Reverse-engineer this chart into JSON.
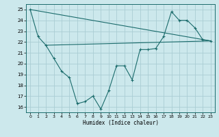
{
  "xlabel": "Humidex (Indice chaleur)",
  "xlim": [
    -0.5,
    23.5
  ],
  "ylim": [
    15.5,
    25.5
  ],
  "xticks": [
    0,
    1,
    2,
    3,
    4,
    5,
    6,
    7,
    8,
    9,
    10,
    11,
    12,
    13,
    14,
    15,
    16,
    17,
    18,
    19,
    20,
    21,
    22,
    23
  ],
  "yticks": [
    16,
    17,
    18,
    19,
    20,
    21,
    22,
    23,
    24,
    25
  ],
  "bg_color": "#cce8ec",
  "grid_color": "#aacdd4",
  "line_color": "#1a6b6b",
  "curve_x": [
    0,
    1,
    2,
    3,
    4,
    5,
    6,
    7,
    8,
    9,
    10,
    11,
    12,
    13,
    14,
    15,
    16,
    17,
    18,
    19,
    20,
    21,
    22,
    23
  ],
  "curve_y": [
    25.0,
    22.5,
    21.7,
    20.5,
    19.3,
    18.7,
    16.3,
    16.5,
    17.0,
    15.8,
    17.5,
    19.8,
    19.8,
    18.5,
    21.3,
    21.3,
    21.4,
    22.5,
    24.8,
    24.0,
    24.0,
    23.3,
    22.2,
    22.1
  ]
}
